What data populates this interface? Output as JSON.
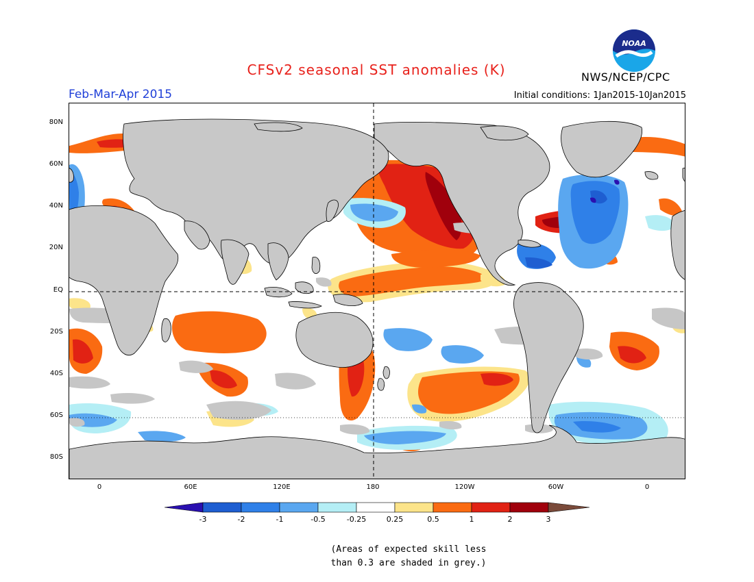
{
  "title": "CFSv2 seasonal SST anomalies (K)",
  "season": "Feb-Mar-Apr 2015",
  "initial_conditions": "Initial conditions: 1Jan2015-10Jan2015",
  "agency": "NWS/NCEP/CPC",
  "logo_text": "NOAA",
  "lat_labels": [
    "80N",
    "60N",
    "40N",
    "20N",
    "EQ",
    "20S",
    "40S",
    "60S",
    "80S"
  ],
  "lon_labels": [
    "0",
    "60E",
    "120E",
    "180",
    "120W",
    "60W",
    "0"
  ],
  "colorbar": {
    "ticks": [
      "-3",
      "-2",
      "-1",
      "-0.5",
      "-0.25",
      "0.25",
      "0.5",
      "1",
      "2",
      "3"
    ],
    "colors": [
      "#2a10b0",
      "#1e5ed1",
      "#2f80e8",
      "#5aa7f0",
      "#b4eef5",
      "#ffffff",
      "#fce48a",
      "#fa6b12",
      "#e12214",
      "#a0000c",
      "#7a4a3a"
    ]
  },
  "skill_note": [
    "(Areas of expected skill less",
    "than 0.3 are shaded in grey.)"
  ],
  "colors": {
    "land": "#c8c8c8",
    "skill_grey": "#c6c6c6",
    "title": "#e8211b",
    "season": "#1f3fd8"
  },
  "map": {
    "projection": "equirectangular",
    "lon_range": [
      -20,
      380
    ],
    "lat_range": [
      -90,
      90
    ]
  }
}
